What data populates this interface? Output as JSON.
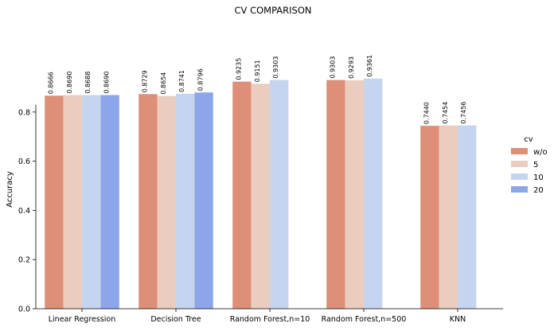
{
  "chart_data": {
    "type": "bar",
    "title": "CV COMPARISON",
    "xlabel": "",
    "ylabel": "Accuracy",
    "ylim": [
      0,
      1.0
    ],
    "yticks": [
      "0.0",
      "0.2",
      "0.4",
      "0.6",
      "0.8"
    ],
    "ytick_values": [
      0.0,
      0.2,
      0.4,
      0.6,
      0.8
    ],
    "grid": false,
    "legend": {
      "title": "cv",
      "position": "right"
    },
    "categories": [
      "Linear Regression",
      "Decision Tree",
      "Random Forest,n=10",
      "Random Forest,n=500",
      "KNN"
    ],
    "series": [
      {
        "name": "w/o",
        "color": "#dd8f78",
        "values": [
          0.8666,
          0.8729,
          0.9235,
          0.9303,
          0.744
        ],
        "labels": [
          "0.8666",
          "0.8729",
          "0.9235",
          "0.9303",
          "0.7440"
        ]
      },
      {
        "name": "5",
        "color": "#ebcdc0",
        "values": [
          0.869,
          0.8654,
          0.9151,
          0.9293,
          0.7454
        ],
        "labels": [
          "0.8690",
          "0.8654",
          "0.9151",
          "0.9293",
          "0.7454"
        ]
      },
      {
        "name": "10",
        "color": "#c5d4ef",
        "values": [
          0.8688,
          0.8741,
          0.9303,
          0.9361,
          0.7456
        ],
        "labels": [
          "0.8688",
          "0.8741",
          "0.9303",
          "0.9361",
          "0.7456"
        ]
      },
      {
        "name": "20",
        "color": "#8da6ea",
        "values": [
          0.869,
          0.8796,
          null,
          null,
          null
        ],
        "labels": [
          "0.8690",
          "0.8796",
          null,
          null,
          null
        ]
      }
    ]
  }
}
